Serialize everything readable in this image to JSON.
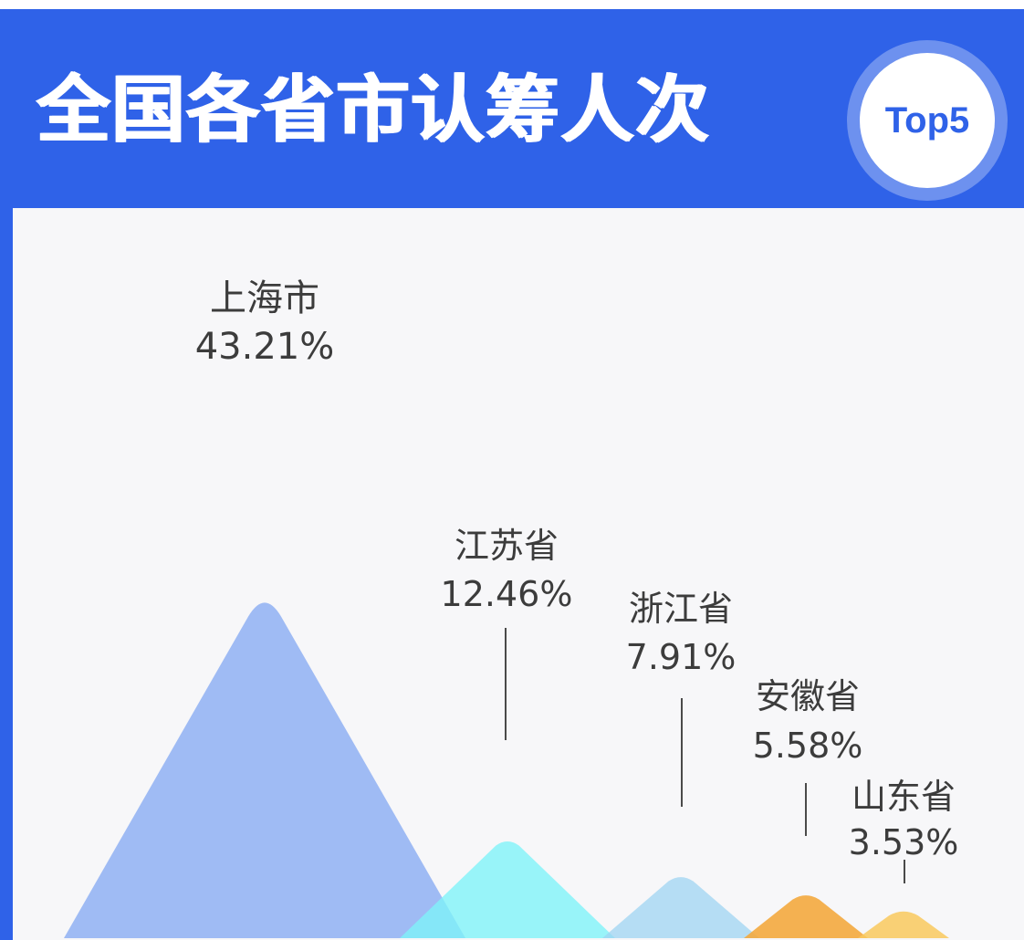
{
  "header": {
    "title": "全国各省市认筹人次",
    "badge": "Top5"
  },
  "colors": {
    "header_bg": "#2f62e8",
    "panel_bg": "#f7f7f9",
    "text": "#3c3c3c",
    "series": [
      "#8fb0f3",
      "#7df3f9",
      "#9fd4f2",
      "#f3a93e",
      "#f9c95e"
    ]
  },
  "chart_data": {
    "type": "area",
    "shape": "peaks",
    "categories": [
      "上海市",
      "江苏省",
      "浙江省",
      "安徽省",
      "山东省"
    ],
    "values": [
      43.21,
      12.46,
      7.91,
      5.58,
      3.53
    ],
    "value_labels": [
      "43.21%",
      "12.46%",
      "7.91%",
      "5.58%",
      "3.53%"
    ],
    "title": "全国各省市认筹人次"
  }
}
